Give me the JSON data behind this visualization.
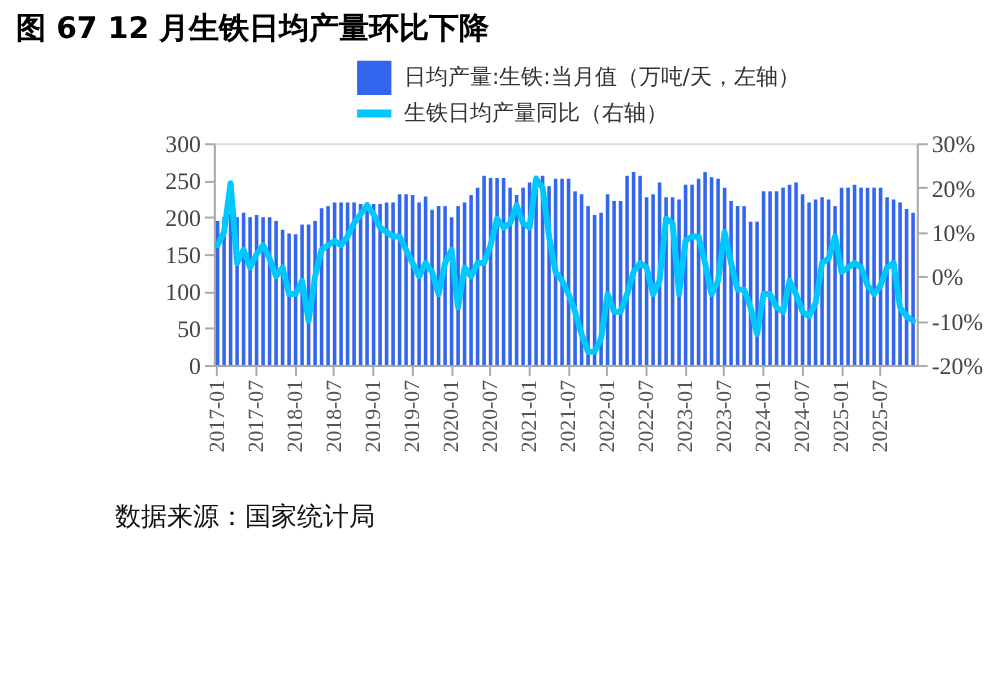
{
  "chart_data": {
    "type": "bar",
    "title": "图 67 12 月生铁日均产量环比下降",
    "categories": [
      "2017-01",
      null,
      null,
      null,
      null,
      null,
      "2017-07",
      null,
      null,
      null,
      null,
      null,
      "2018-01",
      null,
      null,
      null,
      null,
      null,
      "2018-07",
      null,
      null,
      null,
      null,
      null,
      "2019-01",
      null,
      null,
      null,
      null,
      null,
      "2019-07",
      null,
      null,
      null,
      null,
      null,
      "2020-01",
      null,
      null,
      null,
      null,
      null,
      "2020-07",
      null,
      null,
      null,
      null,
      null,
      "2021-01",
      null,
      null,
      null,
      null,
      null,
      "2021-07",
      null,
      null,
      null,
      null,
      null,
      "2022-01",
      null,
      null,
      null,
      null,
      null,
      "2022-07",
      null,
      null,
      null,
      null,
      null,
      "2023-01",
      null,
      null,
      null,
      null,
      null,
      "2023-07",
      null,
      null,
      null,
      null,
      null,
      "2024-01",
      null,
      null,
      null,
      null,
      null,
      "2024-07",
      null,
      null,
      null,
      null,
      null,
      "2025-01",
      null,
      null,
      null,
      null,
      null,
      "2025-07",
      null,
      null,
      null,
      null,
      null
    ],
    "series": [
      {
        "name": "日均产量:生铁:当月值（万吨/天，左轴）",
        "color": "#3366ee",
        "values": [
          195,
          200,
          205,
          200,
          206,
          200,
          203,
          200,
          200,
          195,
          183,
          178,
          177,
          190,
          190,
          195,
          212,
          215,
          220,
          220,
          220,
          220,
          218,
          220,
          218,
          218,
          220,
          220,
          231,
          231,
          230,
          220,
          228,
          210,
          215,
          215,
          200,
          215,
          220,
          230,
          240,
          256,
          253,
          253,
          253,
          240,
          230,
          240,
          247,
          256,
          256,
          242,
          252,
          252,
          252,
          235,
          231,
          215,
          203,
          206,
          231,
          222,
          222,
          256,
          261,
          256,
          227,
          231,
          247,
          227,
          227,
          224,
          244,
          244,
          252,
          261,
          254,
          252,
          240,
          222,
          215,
          215,
          194,
          194,
          235,
          235,
          235,
          240,
          244,
          247,
          231,
          220,
          224,
          227,
          224,
          215,
          240,
          240,
          244,
          240,
          240,
          240,
          240,
          227,
          224,
          220,
          211,
          206
        ]
      },
      {
        "name": "生铁日均产量同比（右轴）",
        "type": "line",
        "axis": "y2",
        "color": "#00c8ff",
        "values": [
          7,
          10,
          21,
          3,
          6,
          2,
          5,
          7,
          4,
          0,
          2,
          -4,
          -4,
          -1,
          -10,
          0,
          6,
          7,
          8,
          7,
          9,
          12,
          14,
          16,
          14,
          11,
          10,
          9,
          9,
          6,
          3,
          0,
          3,
          1,
          -4,
          3,
          6,
          -7,
          2,
          0,
          3,
          3,
          7,
          13,
          11,
          12,
          16,
          12,
          11,
          22,
          20,
          9,
          1,
          -1,
          -4,
          -8,
          -13,
          -17,
          -17,
          -14,
          -4,
          -8,
          -8,
          -4,
          1,
          3,
          2,
          -4,
          -1,
          13,
          12,
          -4,
          8,
          9,
          9,
          3,
          -4,
          -1,
          10,
          3,
          -3,
          -3,
          -7,
          -13,
          -4,
          -4,
          -7,
          -8,
          -1,
          -4,
          -8,
          -9,
          -6,
          3,
          4,
          9,
          1,
          2,
          3,
          2,
          -2,
          -4,
          -2,
          2,
          3,
          -7,
          -9,
          -10
        ]
      }
    ],
    "ylim": [
      0,
      300
    ],
    "yticks": [
      0,
      50,
      100,
      150,
      200,
      250,
      300
    ],
    "y2lim": [
      -20,
      30
    ],
    "y2ticks": [
      {
        "value": -20,
        "label": "-20%"
      },
      {
        "value": -10,
        "label": "-10%"
      },
      {
        "value": 0,
        "label": "0%"
      },
      {
        "value": 10,
        "label": "10%"
      },
      {
        "value": 20,
        "label": "20%"
      },
      {
        "value": 30,
        "label": "30%"
      }
    ],
    "grid": false,
    "legend": "top",
    "annotations": [
      "数据来源：国家统计局"
    ]
  }
}
